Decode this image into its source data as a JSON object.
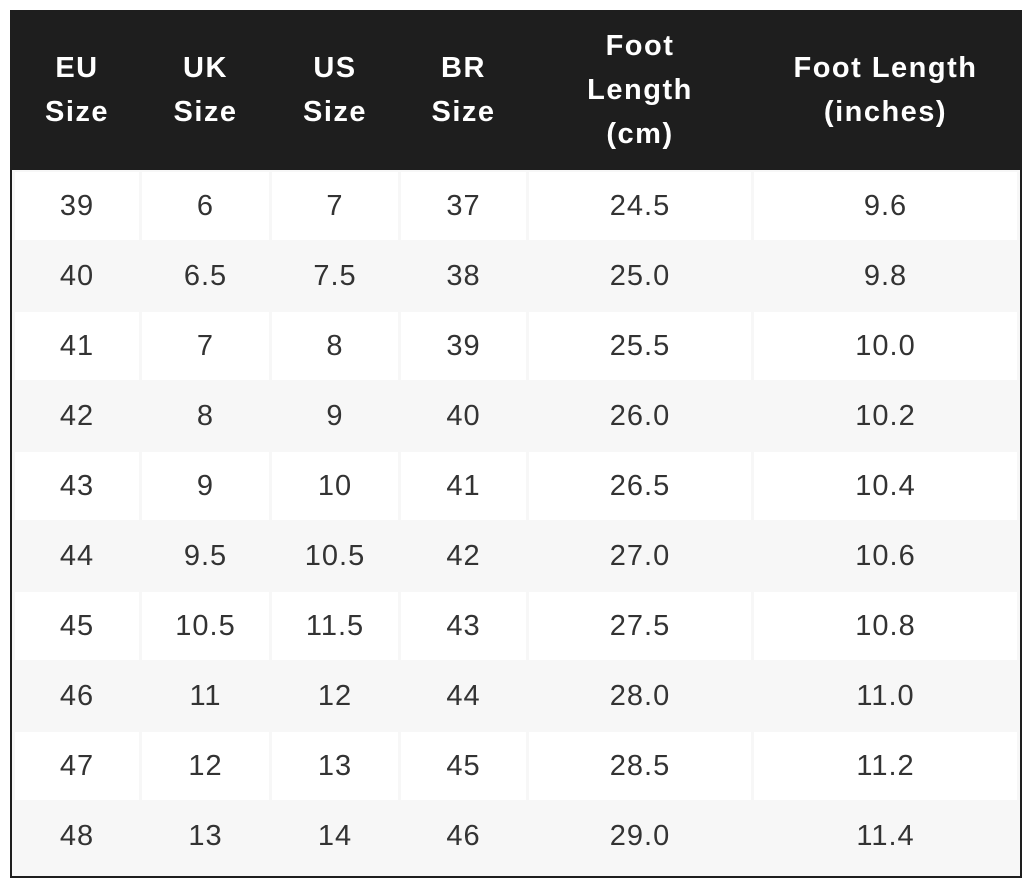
{
  "table": {
    "headers": [
      "EU\nSize",
      "UK\nSize",
      "US\nSize",
      "BR\nSize",
      "Foot\nLength\n(cm)",
      "Foot Length\n(inches)"
    ],
    "rows": [
      [
        "39",
        "6",
        "7",
        "37",
        "24.5",
        "9.6"
      ],
      [
        "40",
        "6.5",
        "7.5",
        "38",
        "25.0",
        "9.8"
      ],
      [
        "41",
        "7",
        "8",
        "39",
        "25.5",
        "10.0"
      ],
      [
        "42",
        "8",
        "9",
        "40",
        "26.0",
        "10.2"
      ],
      [
        "43",
        "9",
        "10",
        "41",
        "26.5",
        "10.4"
      ],
      [
        "44",
        "9.5",
        "10.5",
        "42",
        "27.0",
        "10.6"
      ],
      [
        "45",
        "10.5",
        "11.5",
        "43",
        "27.5",
        "10.8"
      ],
      [
        "46",
        "11",
        "12",
        "44",
        "28.0",
        "11.0"
      ],
      [
        "47",
        "12",
        "13",
        "45",
        "28.5",
        "11.2"
      ],
      [
        "48",
        "13",
        "14",
        "46",
        "29.0",
        "11.4"
      ]
    ]
  },
  "colors": {
    "header_bg": "#1e1e1e",
    "header_text": "#ffffff",
    "row_alt": "#f7f7f7",
    "text": "#333333"
  }
}
